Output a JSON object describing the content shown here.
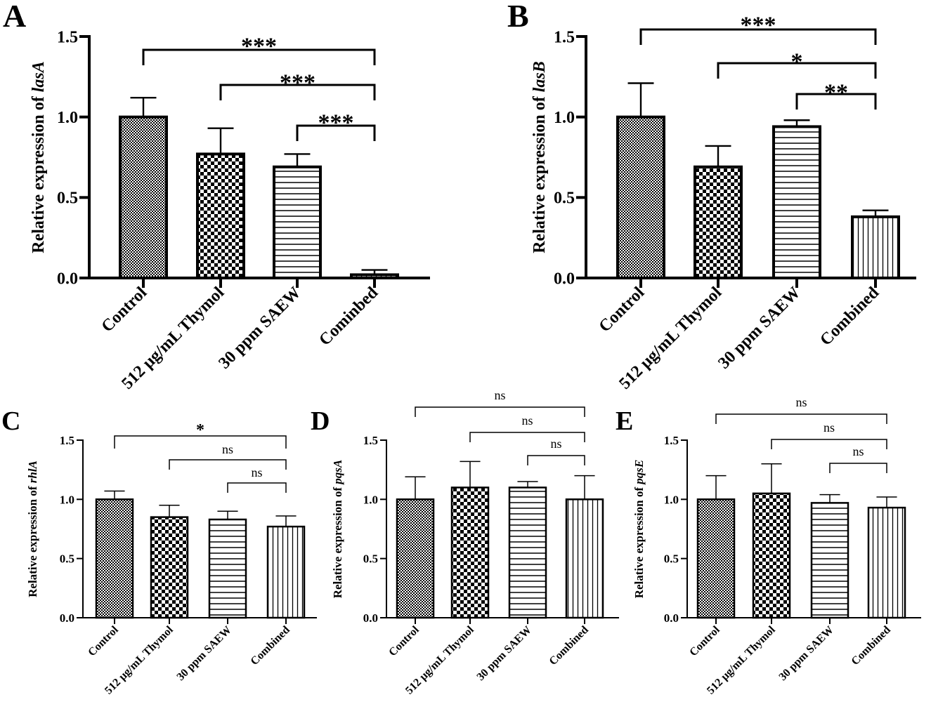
{
  "colors": {
    "ink": "#000000",
    "background": "#ffffff"
  },
  "patterns": [
    "checker-fine",
    "checker-coarse",
    "horizontal-lines",
    "vertical-lines"
  ],
  "chart_data": [
    {
      "panel": "A",
      "type": "bar",
      "ylabel_prefix": "Relative expression of ",
      "gene": "lasA",
      "categories": [
        "Control",
        "512 μg/mL Thymol",
        "30 ppm SAEW",
        "Cominbed"
      ],
      "values": [
        1.0,
        0.77,
        0.69,
        0.02
      ],
      "errors": [
        0.12,
        0.16,
        0.08,
        0.03
      ],
      "ylim": [
        0,
        1.5
      ],
      "yticks": [
        "0.0",
        "0.5",
        "1.0",
        "1.5"
      ],
      "comparisons": [
        {
          "from": 0,
          "to": 3,
          "label": "***"
        },
        {
          "from": 1,
          "to": 3,
          "label": "***"
        },
        {
          "from": 2,
          "to": 3,
          "label": "***"
        }
      ]
    },
    {
      "panel": "B",
      "type": "bar",
      "ylabel_prefix": "Relative expression of ",
      "gene": "lasB",
      "categories": [
        "Control",
        "512 μg/mL Thymol",
        "30 ppm SAEW",
        "Combined"
      ],
      "values": [
        1.0,
        0.69,
        0.94,
        0.38
      ],
      "errors": [
        0.21,
        0.13,
        0.04,
        0.04
      ],
      "ylim": [
        0,
        1.5
      ],
      "yticks": [
        "0.0",
        "0.5",
        "1.0",
        "1.5"
      ],
      "comparisons": [
        {
          "from": 0,
          "to": 3,
          "label": "***"
        },
        {
          "from": 1,
          "to": 3,
          "label": "*"
        },
        {
          "from": 2,
          "to": 3,
          "label": "**"
        }
      ]
    },
    {
      "panel": "C",
      "type": "bar",
      "ylabel_prefix": "Relative expression of ",
      "gene": "rhlA",
      "categories": [
        "Control",
        "512 μg/mL Thymol",
        "30 ppm SAEW",
        "Combined"
      ],
      "values": [
        1.0,
        0.85,
        0.83,
        0.77
      ],
      "errors": [
        0.07,
        0.1,
        0.07,
        0.09
      ],
      "ylim": [
        0,
        1.5
      ],
      "yticks": [
        "0.0",
        "0.5",
        "1.0",
        "1.5"
      ],
      "comparisons": [
        {
          "from": 0,
          "to": 3,
          "label": "*"
        },
        {
          "from": 1,
          "to": 3,
          "label": "ns"
        },
        {
          "from": 2,
          "to": 3,
          "label": "ns"
        }
      ]
    },
    {
      "panel": "D",
      "type": "bar",
      "ylabel_prefix": "Relative expression of ",
      "gene": "pqsA",
      "categories": [
        "Control",
        "512 μg/mL Thymol",
        "30 ppm SAEW",
        "Combined"
      ],
      "values": [
        1.0,
        1.1,
        1.1,
        1.0
      ],
      "errors": [
        0.19,
        0.22,
        0.05,
        0.2
      ],
      "ylim": [
        0,
        1.5
      ],
      "yticks": [
        "0.0",
        "0.5",
        "1.0",
        "1.5"
      ],
      "comparisons": [
        {
          "from": 0,
          "to": 3,
          "label": "ns"
        },
        {
          "from": 1,
          "to": 3,
          "label": "ns"
        },
        {
          "from": 2,
          "to": 3,
          "label": "ns"
        }
      ]
    },
    {
      "panel": "E",
      "type": "bar",
      "ylabel_prefix": "Relative expression of ",
      "gene": "pqsE",
      "categories": [
        "Control",
        "512 μg/mL Thymol",
        "30 ppm SAEW",
        "Combined"
      ],
      "values": [
        1.0,
        1.05,
        0.97,
        0.93
      ],
      "errors": [
        0.2,
        0.25,
        0.07,
        0.09
      ],
      "ylim": [
        0,
        1.5
      ],
      "yticks": [
        "0.0",
        "0.5",
        "1.0",
        "1.5"
      ],
      "comparisons": [
        {
          "from": 0,
          "to": 3,
          "label": "ns"
        },
        {
          "from": 1,
          "to": 3,
          "label": "ns"
        },
        {
          "from": 2,
          "to": 3,
          "label": "ns"
        }
      ]
    }
  ]
}
